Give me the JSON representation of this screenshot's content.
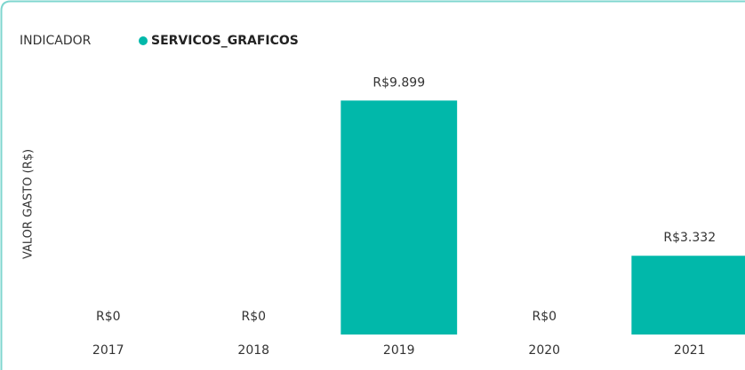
{
  "chart_data": {
    "type": "bar",
    "legend_title": "INDICADOR",
    "series": [
      {
        "name": "SERVICOS_GRAFICOS",
        "color": "#01b8aa",
        "values": [
          0,
          0,
          9899,
          0,
          3332
        ]
      }
    ],
    "value_labels": [
      "R$0",
      "R$0",
      "R$9.899",
      "R$0",
      "R$3.332"
    ],
    "categories": [
      "2017",
      "2018",
      "2019",
      "2020",
      "2021"
    ],
    "ylabel": "VALOR GASTO (R$)",
    "ylim": [
      0,
      11000
    ]
  }
}
